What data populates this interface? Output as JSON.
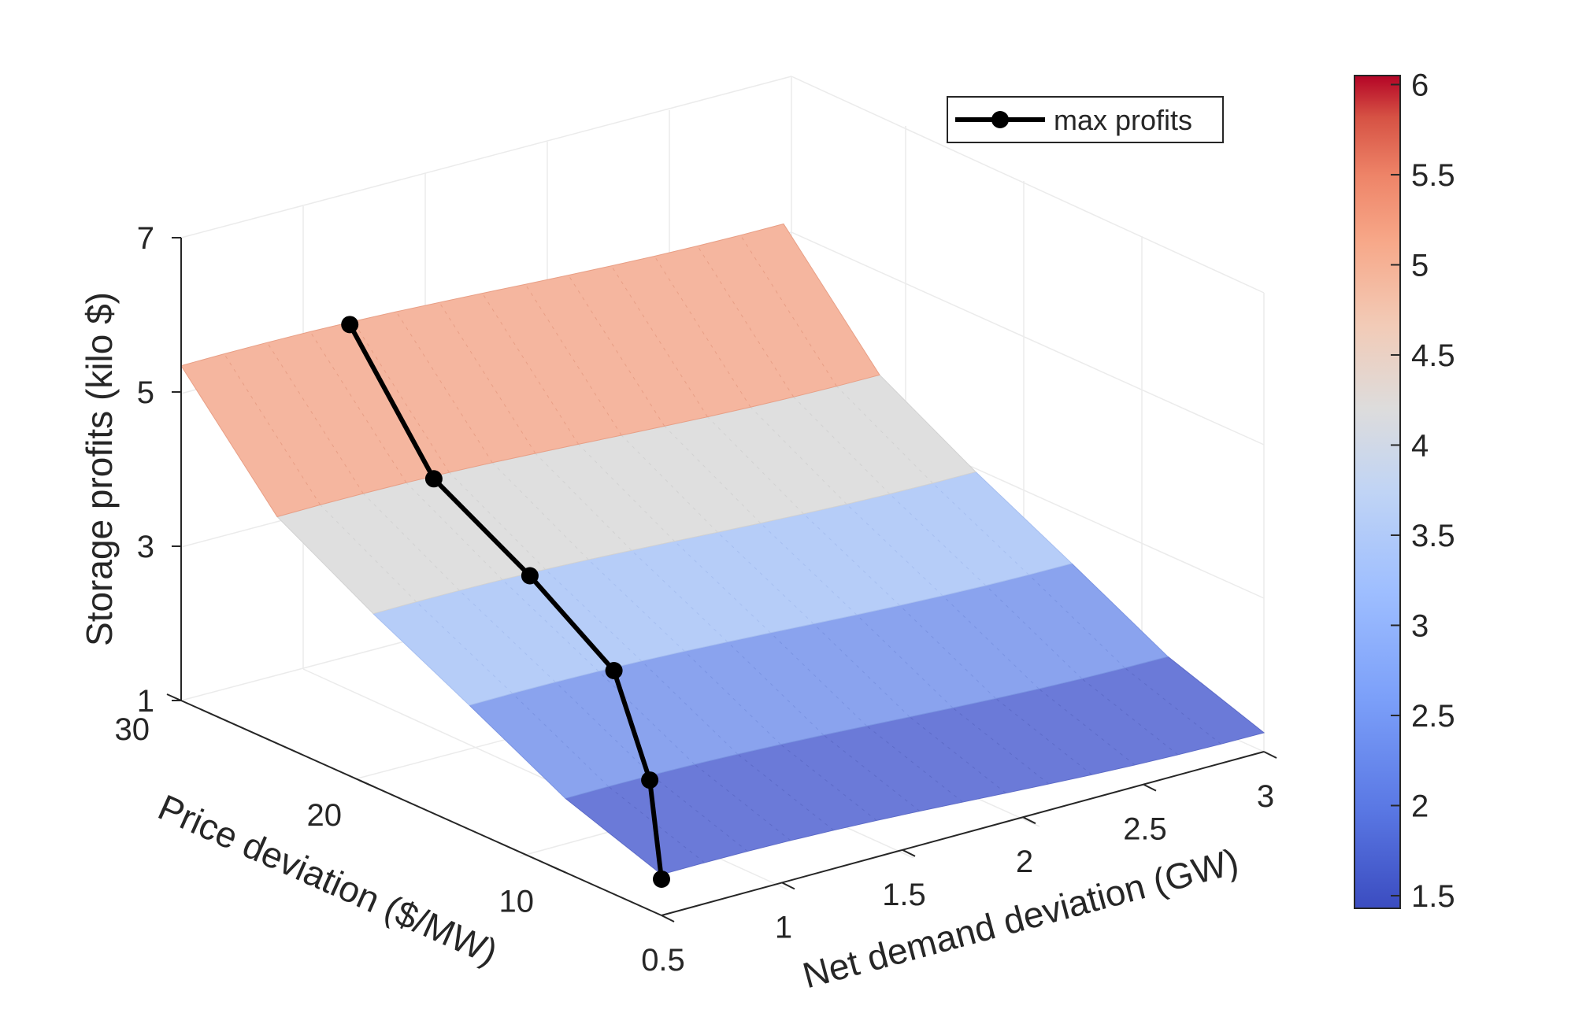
{
  "chart_data": {
    "type": "surface",
    "xlabel": "Net demand deviation (GW)",
    "ylabel": "Price deviation ($/MW)",
    "zlabel": "Storage profits (kilo $)",
    "x_ticks": [
      "0.5",
      "1",
      "1.5",
      "2",
      "2.5",
      "3"
    ],
    "y_ticks": [
      "10",
      "20",
      "30"
    ],
    "z_ticks": [
      "1",
      "3",
      "5",
      "7"
    ],
    "xlim": [
      0.5,
      3
    ],
    "ylim": [
      5,
      30
    ],
    "zlim": [
      1,
      7
    ],
    "price_rows": [
      5,
      10,
      15,
      20,
      25,
      30
    ],
    "row_profit": [
      1.47,
      1.9,
      2.55,
      3.18,
      3.88,
      5.28
    ],
    "max_profits": [
      {
        "x": 0.5,
        "y": 5,
        "z": 1.47
      },
      {
        "x": 0.85,
        "y": 10,
        "z": 1.9
      },
      {
        "x": 1.1,
        "y": 15,
        "z": 2.55
      },
      {
        "x": 1.15,
        "y": 20,
        "z": 3.18
      },
      {
        "x": 1.15,
        "y": 25,
        "z": 3.88
      },
      {
        "x": 1.2,
        "y": 30,
        "z": 5.28
      }
    ],
    "legend": {
      "label": "max profits",
      "position": "top-right"
    },
    "colorbar": {
      "ticks": [
        "1.5",
        "2",
        "2.5",
        "3",
        "3.5",
        "4",
        "4.5",
        "5",
        "5.5",
        "6"
      ],
      "range": [
        1.43,
        6.05
      ]
    },
    "grid": true
  }
}
